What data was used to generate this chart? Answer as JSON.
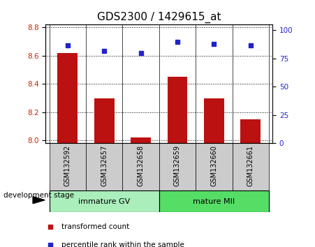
{
  "title": "GDS2300 / 1429615_at",
  "categories": [
    "GSM132592",
    "GSM132657",
    "GSM132658",
    "GSM132659",
    "GSM132660",
    "GSM132661"
  ],
  "bar_values": [
    8.62,
    8.3,
    8.02,
    8.45,
    8.3,
    8.15
  ],
  "percentile_values": [
    87,
    82,
    80,
    90,
    88,
    87
  ],
  "ylim_left": [
    7.98,
    8.82
  ],
  "ylim_right": [
    0,
    105
  ],
  "yticks_left": [
    8.0,
    8.2,
    8.4,
    8.6,
    8.8
  ],
  "yticks_right": [
    0,
    25,
    50,
    75,
    100
  ],
  "bar_color": "#bb1111",
  "dot_color": "#2222cc",
  "group1_label": "immature GV",
  "group2_label": "mature MII",
  "group1_color": "#aaeebb",
  "group2_color": "#55dd66",
  "xlabel": "development stage",
  "legend_bar": "transformed count",
  "legend_dot": "percentile rank within the sample",
  "grid_color": "#000000",
  "bg_plot": "#ffffff",
  "bg_xtick": "#cccccc",
  "title_fontsize": 11,
  "tick_fontsize": 7.5,
  "label_fontsize": 8
}
